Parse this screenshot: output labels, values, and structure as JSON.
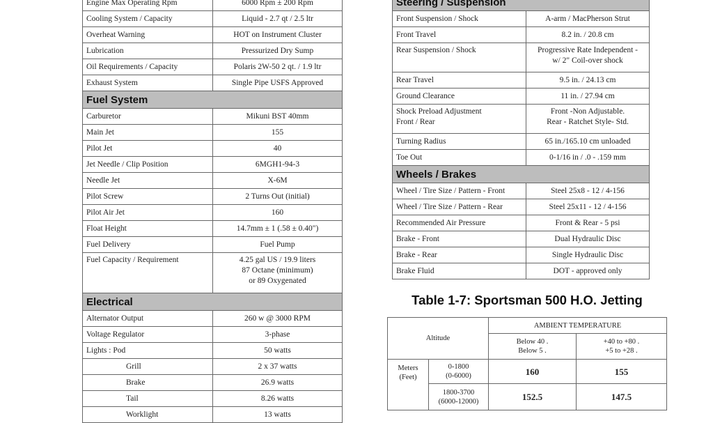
{
  "left_table": [
    {
      "label": "Engine Max Operating Rpm",
      "value": "6000 Rpm ± 200 Rpm"
    },
    {
      "label": "Cooling System / Capacity",
      "value": "Liquid - 2.7 qt / 2.5 ltr"
    },
    {
      "label": "Overheat Warning",
      "value": "HOT on Instrument Cluster"
    },
    {
      "label": "Lubrication",
      "value": "Pressurized Dry Sump"
    },
    {
      "label": "Oil Requirements / Capacity",
      "value": "Polaris 2W-50  2 qt. / 1.9 ltr"
    },
    {
      "label": "Exhaust System",
      "value": "Single Pipe USFS Approved"
    },
    {
      "section": "Fuel System"
    },
    {
      "label": "Carburetor",
      "value": "Mikuni BST 40mm"
    },
    {
      "label": "Main Jet",
      "value": "155"
    },
    {
      "label": "Pilot Jet",
      "value": "40"
    },
    {
      "label": "Jet Needle / Clip Position",
      "value": "6MGH1-94-3"
    },
    {
      "label": "Needle Jet",
      "value": "X-6M"
    },
    {
      "label": "Pilot Screw",
      "value": "2 Turns Out (initial)"
    },
    {
      "label": "Pilot Air Jet",
      "value": "160"
    },
    {
      "label": "Float Height",
      "value": "14.7mm ± 1 (.58 ± 0.40\")"
    },
    {
      "label": "Fuel Delivery",
      "value": "Fuel Pump"
    },
    {
      "label": "Fuel Capacity / Requirement",
      "value": "4.25 gal US / 19.9 liters\n87 Octane (minimum)\nor 89 Oxygenated"
    },
    {
      "section": "Electrical"
    },
    {
      "label": "Alternator  Output",
      "value": "260 w @ 3000 RPM"
    },
    {
      "label": "Voltage Regulator",
      "value": "3-phase"
    },
    {
      "label": "Lights :    Pod",
      "value": "50 watts"
    },
    {
      "label": "Grill",
      "value": "2 x 37 watts",
      "indent": true
    },
    {
      "label": "Brake",
      "value": "26.9 watts",
      "indent": true
    },
    {
      "label": "Tail",
      "value": "8.26 watts",
      "indent": true
    },
    {
      "label": "Worklight",
      "value": "13 watts",
      "indent": true
    }
  ],
  "right_table": [
    {
      "section": "Steering / Suspension"
    },
    {
      "label": "Front Suspension / Shock",
      "value": "A-arm / MacPherson Strut"
    },
    {
      "label": "Front Travel",
      "value": "8.2 in. / 20.8 cm"
    },
    {
      "label": "Rear Suspension / Shock",
      "value": "Progressive Rate Independent -\nw/ 2\" Coil-over shock"
    },
    {
      "label": "Rear Travel",
      "value": "9.5 in. / 24.13 cm"
    },
    {
      "label": "Ground Clearance",
      "value": "11 in. / 27.94 cm"
    },
    {
      "label": "Shock Preload Adjustment\nFront / Rear",
      "value": "Front -Non Adjustable.\nRear - Ratchet Style- Std."
    },
    {
      "label": "Turning Radius",
      "value": "65 in./165.10 cm unloaded"
    },
    {
      "label": "Toe Out",
      "value": "0-1/16 in / .0 - .159 mm"
    },
    {
      "section": "Wheels / Brakes"
    },
    {
      "label": "Wheel / Tire Size / Pattern - Front",
      "value": "Steel 25x8 - 12 / 4-156"
    },
    {
      "label": "Wheel / Tire Size / Pattern - Rear",
      "value": "Steel 25x11 - 12 / 4-156"
    },
    {
      "label": "Recommended Air Pressure",
      "value": "Front & Rear - 5 psi"
    },
    {
      "label": "Brake - Front",
      "value": "Dual Hydraulic Disc"
    },
    {
      "label": "Brake - Rear",
      "value": "Single Hydraulic Disc"
    },
    {
      "label": "Brake Fluid",
      "value": "DOT - approved only"
    }
  ],
  "jetting": {
    "title": "Table 1-7: Sportsman 500 H.O. Jetting",
    "altitude_label": "Altitude",
    "ambient_label": "AMBIENT TEMPERATURE",
    "temp_cols": [
      "Below 40 .\nBelow 5 .",
      "+40 to +80 .\n+5 to +28 ."
    ],
    "unit_label": "Meters\n(Feet)",
    "rows": [
      {
        "range": "0-1800\n(0-6000)",
        "values": [
          "160",
          "155"
        ]
      },
      {
        "range": "1800-3700\n(6000-12000)",
        "values": [
          "152.5",
          "147.5"
        ]
      }
    ]
  }
}
